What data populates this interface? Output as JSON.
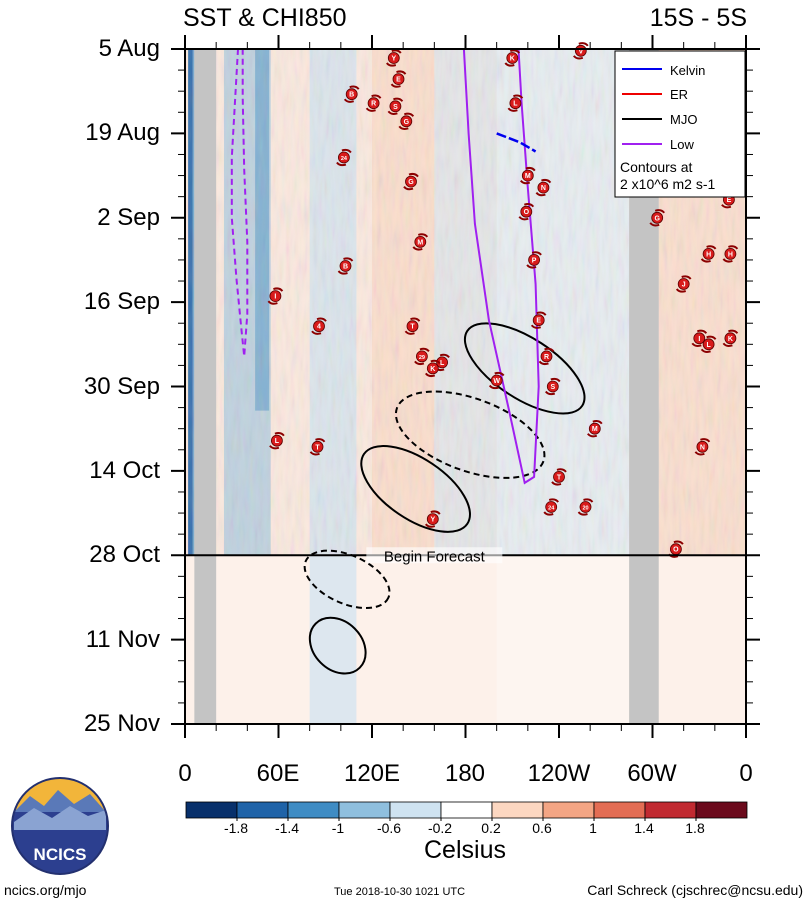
{
  "header": {
    "title_left": "SST & CHI850",
    "title_right": "15S - 5S"
  },
  "chart_data": {
    "type": "heatmap",
    "title": "SST & CHI850",
    "subtitle": "15S - 5S",
    "x_axis": {
      "range_deg": [
        0,
        360
      ],
      "tick_labels": [
        "0",
        "60E",
        "120E",
        "180",
        "120W",
        "60W",
        "0"
      ],
      "tick_values_deg": [
        0,
        60,
        120,
        180,
        240,
        300,
        360
      ]
    },
    "y_axis": {
      "tick_labels": [
        "5 Aug",
        "19 Aug",
        "2 Sep",
        "16 Sep",
        "30 Sep",
        "14 Oct",
        "28 Oct",
        "11 Nov",
        "25 Nov"
      ],
      "tick_day_index": [
        0,
        14,
        28,
        42,
        56,
        70,
        84,
        98,
        112
      ],
      "range_days": [
        0,
        112
      ],
      "inverted": true
    },
    "forecast": {
      "label": "Begin Forecast",
      "day_index": 84
    },
    "land_masks_deg": [
      [
        6,
        20
      ],
      [
        285,
        304
      ]
    ],
    "colorbar": {
      "units": "Celsius",
      "labels": [
        "-1.8",
        "-1.4",
        "-1",
        "-0.6",
        "-0.2",
        "0.2",
        "0.6",
        "1",
        "1.4",
        "1.8"
      ],
      "colors": [
        "#08306b",
        "#1f63a8",
        "#3f8cc4",
        "#8fbfde",
        "#cfe3f1",
        "#ffffff",
        "#fcd7c1",
        "#f3a584",
        "#e36d54",
        "#c12a31",
        "#6b0a1c"
      ]
    },
    "legend": {
      "position": "top-right",
      "entries": [
        {
          "name": "Kelvin",
          "color": "#0000ee"
        },
        {
          "name": "ER",
          "color": "#ee0000"
        },
        {
          "name": "MJO",
          "color": "#000000"
        },
        {
          "name": "Low",
          "color": "#a020f0"
        }
      ],
      "note_line1": "Contours at",
      "note_line2": "2 x10^6 m2 s-1"
    },
    "mjo_contours": [
      {
        "style": "solid",
        "center_deg": 218,
        "center_day": 53,
        "major_deg": 44,
        "minor_days": 5,
        "angle_deg": 33
      },
      {
        "style": "solid",
        "center_deg": 148,
        "center_day": 73,
        "major_deg": 40,
        "minor_days": 5,
        "angle_deg": 34
      },
      {
        "style": "solid",
        "center_deg": 98,
        "center_day": 99,
        "major_deg": 20,
        "minor_days": 4,
        "angle_deg": 45
      },
      {
        "style": "dashed",
        "center_deg": 183,
        "center_day": 64,
        "major_deg": 50,
        "minor_days": 6,
        "angle_deg": 20
      },
      {
        "style": "dashed",
        "center_deg": 104,
        "center_day": 88,
        "major_deg": 29,
        "minor_days": 4,
        "angle_deg": 24
      }
    ],
    "low_contours": [
      {
        "style": "dashed",
        "points_deg_day": [
          [
            34,
            0
          ],
          [
            32,
            9
          ],
          [
            30,
            18
          ],
          [
            30,
            28
          ],
          [
            33,
            38
          ],
          [
            36,
            46
          ],
          [
            38,
            51
          ],
          [
            40,
            44
          ],
          [
            40,
            32
          ],
          [
            38,
            20
          ],
          [
            37,
            8
          ],
          [
            37,
            0
          ]
        ]
      },
      {
        "style": "solid",
        "points_deg_day": [
          [
            179,
            0
          ],
          [
            182,
            14
          ],
          [
            186,
            29
          ],
          [
            195,
            45
          ],
          [
            208,
            60
          ],
          [
            218,
            72
          ],
          [
            224,
            71
          ],
          [
            227,
            56
          ],
          [
            225,
            39
          ],
          [
            220,
            23
          ],
          [
            216,
            9
          ],
          [
            214,
            0
          ]
        ]
      }
    ],
    "kelvin_segment_deg_day": [
      [
        200,
        14
      ],
      [
        215,
        15.5
      ],
      [
        225,
        17
      ]
    ],
    "storm_markers": [
      {
        "label": "Y",
        "deg": 134,
        "day": 1.5
      },
      {
        "label": "K",
        "deg": 210,
        "day": 1.5
      },
      {
        "label": "V",
        "deg": 254,
        "day": 0.3
      },
      {
        "label": "E",
        "deg": 137,
        "day": 5
      },
      {
        "label": "B",
        "deg": 107,
        "day": 7.5
      },
      {
        "label": "L",
        "deg": 212,
        "day": 9
      },
      {
        "label": "R",
        "deg": 121,
        "day": 9
      },
      {
        "label": "S",
        "deg": 135,
        "day": 9.5
      },
      {
        "label": "G",
        "deg": 142,
        "day": 12
      },
      {
        "label": "24",
        "deg": 102,
        "day": 18
      },
      {
        "label": "M",
        "deg": 220,
        "day": 21
      },
      {
        "label": "G",
        "deg": 145,
        "day": 22
      },
      {
        "label": "N",
        "deg": 230,
        "day": 23
      },
      {
        "label": "O",
        "deg": 219,
        "day": 27
      },
      {
        "label": "G",
        "deg": 303,
        "day": 28
      },
      {
        "label": "E",
        "deg": 349,
        "day": 25
      },
      {
        "label": "M",
        "deg": 151,
        "day": 32
      },
      {
        "label": "B",
        "deg": 103,
        "day": 36
      },
      {
        "label": "P",
        "deg": 224,
        "day": 35
      },
      {
        "label": "H",
        "deg": 336,
        "day": 34
      },
      {
        "label": "H",
        "deg": 350,
        "day": 34
      },
      {
        "label": "J",
        "deg": 320,
        "day": 39
      },
      {
        "label": "I",
        "deg": 58,
        "day": 41
      },
      {
        "label": "T",
        "deg": 146,
        "day": 46
      },
      {
        "label": "E",
        "deg": 227,
        "day": 45
      },
      {
        "label": "I",
        "deg": 330,
        "day": 48
      },
      {
        "label": "L",
        "deg": 336,
        "day": 49
      },
      {
        "label": "K",
        "deg": 350,
        "day": 48
      },
      {
        "label": "4",
        "deg": 86,
        "day": 46
      },
      {
        "label": "29",
        "deg": 152,
        "day": 51
      },
      {
        "label": "L",
        "deg": 165,
        "day": 52
      },
      {
        "label": "K",
        "deg": 159,
        "day": 53
      },
      {
        "label": "R",
        "deg": 232,
        "day": 51
      },
      {
        "label": "W",
        "deg": 200,
        "day": 55
      },
      {
        "label": "S",
        "deg": 236,
        "day": 56
      },
      {
        "label": "M",
        "deg": 263,
        "day": 63
      },
      {
        "label": "L",
        "deg": 59,
        "day": 65
      },
      {
        "label": "T",
        "deg": 85,
        "day": 66
      },
      {
        "label": "N",
        "deg": 332,
        "day": 66
      },
      {
        "label": "T",
        "deg": 240,
        "day": 71
      },
      {
        "label": "24",
        "deg": 235,
        "day": 76
      },
      {
        "label": "20",
        "deg": 257,
        "day": 76
      },
      {
        "label": "Y",
        "deg": 159,
        "day": 78
      },
      {
        "label": "O",
        "deg": 315,
        "day": 83
      }
    ]
  },
  "branding": {
    "logo_text": "NCICS"
  },
  "footer": {
    "url": "ncics.org/mjo",
    "timestamp": "Tue 2018-10-30 1021 UTC",
    "author": "Carl Schreck (cjschrec@ncsu.edu)"
  }
}
